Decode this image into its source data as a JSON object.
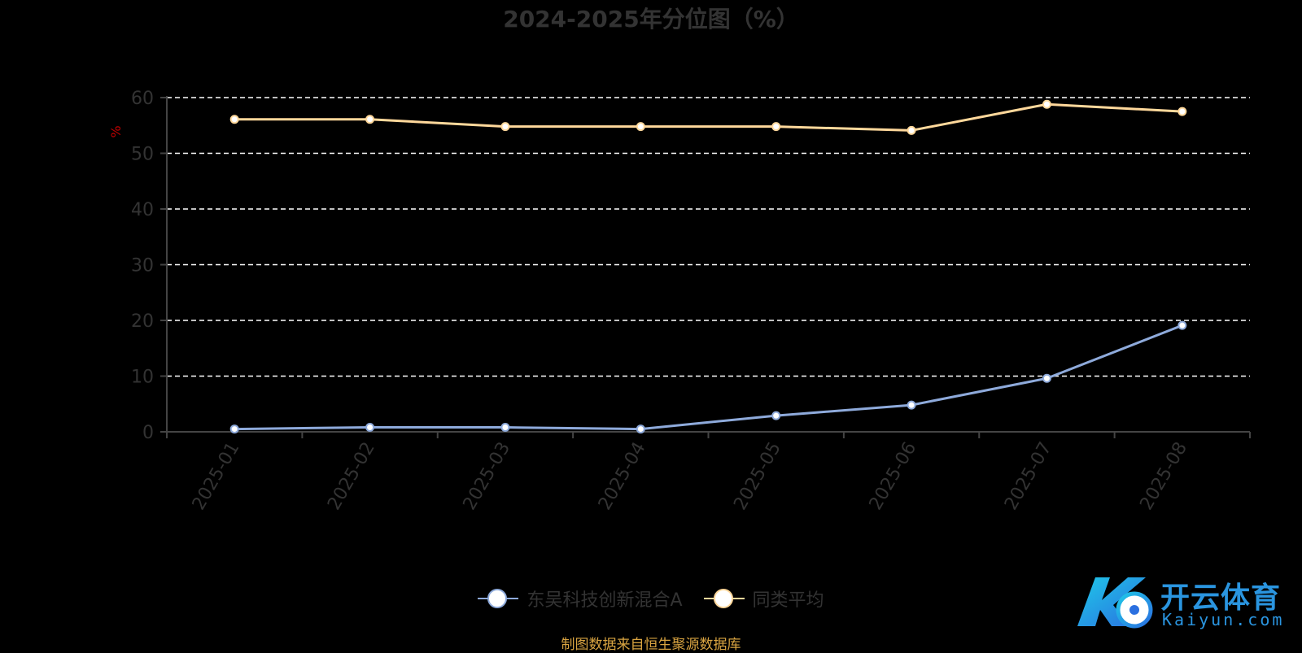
{
  "chart_data": {
    "type": "line",
    "title": "2024-2025年分位图（%）",
    "ylabel": "%",
    "xlabel": "",
    "categories": [
      "2025-01",
      "2025-02",
      "2025-03",
      "2025-04",
      "2025-05",
      "2025-06",
      "2025-07",
      "2025-08"
    ],
    "ylim": [
      0,
      60
    ],
    "yticks": [
      0,
      10,
      20,
      30,
      40,
      50,
      60
    ],
    "grid": true,
    "legend_position": "bottom",
    "series": [
      {
        "name": "东吴科技创新混合A",
        "color": "#8eaadb",
        "values": [
          0.5,
          0.8,
          0.8,
          0.5,
          2.9,
          4.8,
          9.6,
          19.1
        ]
      },
      {
        "name": "同类平均",
        "color": "#ffd89b",
        "values": [
          56.1,
          56.1,
          54.8,
          54.8,
          54.8,
          54.1,
          58.8,
          57.5
        ]
      }
    ]
  },
  "source_note": "制图数据来自恒生聚源数据库",
  "watermark": {
    "brand": "开云体育",
    "site": "Kaiyun.com"
  },
  "colors": {
    "grid": "#ffffff",
    "axis": "#444444",
    "tick_label": "#333333",
    "ylabel": "#c00000"
  }
}
